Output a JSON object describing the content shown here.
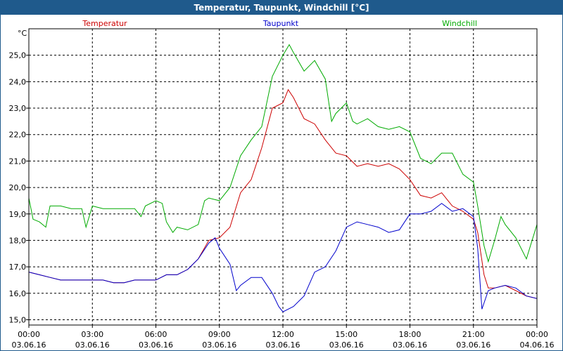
{
  "window": {
    "title": "Temperatur, Taupunkt, Windchill [°C]"
  },
  "chart_data": {
    "type": "line",
    "title": "Temperatur, Taupunkt, Windchill [°C]",
    "ylabel": "°C",
    "xlabel": "",
    "ylim": [
      14.8,
      26.0
    ],
    "xlim": [
      0,
      24
    ],
    "grid": true,
    "legend_position": "top",
    "y_ticks": [
      15.0,
      16.0,
      17.0,
      18.0,
      19.0,
      20.0,
      21.0,
      22.0,
      23.0,
      24.0,
      25.0
    ],
    "y_tick_labels": [
      "15,0",
      "16,0",
      "17,0",
      "18,0",
      "19,0",
      "20,0",
      "21,0",
      "22,0",
      "23,0",
      "24,0",
      "25,0"
    ],
    "x_ticks": [
      0,
      3,
      6,
      9,
      12,
      15,
      18,
      21,
      24
    ],
    "x_tick_labels": [
      {
        "time": "00:00",
        "date": "03.06.16"
      },
      {
        "time": "03:00",
        "date": "03.06.16"
      },
      {
        "time": "06:00",
        "date": "03.06.16"
      },
      {
        "time": "09:00",
        "date": "03.06.16"
      },
      {
        "time": "12:00",
        "date": "03.06.16"
      },
      {
        "time": "15:00",
        "date": "03.06.16"
      },
      {
        "time": "18:00",
        "date": "03.06.16"
      },
      {
        "time": "21:00",
        "date": "03.06.16"
      },
      {
        "time": "00:00",
        "date": "04.06.16"
      }
    ],
    "series": [
      {
        "name": "Temperatur",
        "color": "#cc0000",
        "points": [
          [
            0,
            16.8
          ],
          [
            0.5,
            16.7
          ],
          [
            1,
            16.6
          ],
          [
            1.5,
            16.5
          ],
          [
            2,
            16.5
          ],
          [
            2.5,
            16.5
          ],
          [
            3,
            16.5
          ],
          [
            3.5,
            16.5
          ],
          [
            4,
            16.4
          ],
          [
            4.5,
            16.4
          ],
          [
            5,
            16.5
          ],
          [
            5.5,
            16.5
          ],
          [
            6,
            16.5
          ],
          [
            6.5,
            16.7
          ],
          [
            7,
            16.7
          ],
          [
            7.5,
            16.9
          ],
          [
            8,
            17.3
          ],
          [
            8.5,
            18.0
          ],
          [
            9,
            18.1
          ],
          [
            9.5,
            18.5
          ],
          [
            10,
            19.8
          ],
          [
            10.5,
            20.3
          ],
          [
            11,
            21.5
          ],
          [
            11.5,
            23.0
          ],
          [
            12,
            23.2
          ],
          [
            12.25,
            23.7
          ],
          [
            12.5,
            23.4
          ],
          [
            13,
            22.6
          ],
          [
            13.5,
            22.4
          ],
          [
            14,
            21.8
          ],
          [
            14.5,
            21.3
          ],
          [
            15,
            21.2
          ],
          [
            15.5,
            20.8
          ],
          [
            16,
            20.9
          ],
          [
            16.5,
            20.8
          ],
          [
            17,
            20.9
          ],
          [
            17.5,
            20.7
          ],
          [
            18,
            20.3
          ],
          [
            18.5,
            19.7
          ],
          [
            19,
            19.6
          ],
          [
            19.5,
            19.8
          ],
          [
            20,
            19.3
          ],
          [
            20.5,
            19.1
          ],
          [
            21,
            18.8
          ],
          [
            21.2,
            18.3
          ],
          [
            21.5,
            16.7
          ],
          [
            21.7,
            16.2
          ],
          [
            22,
            16.2
          ],
          [
            22.5,
            16.3
          ],
          [
            23,
            16.1
          ],
          [
            23.5,
            15.9
          ],
          [
            24,
            15.8
          ]
        ]
      },
      {
        "name": "Taupunkt",
        "color": "#0000cc",
        "points": [
          [
            0,
            16.8
          ],
          [
            0.5,
            16.7
          ],
          [
            1,
            16.6
          ],
          [
            1.5,
            16.5
          ],
          [
            2,
            16.5
          ],
          [
            2.5,
            16.5
          ],
          [
            3,
            16.5
          ],
          [
            3.5,
            16.5
          ],
          [
            4,
            16.4
          ],
          [
            4.5,
            16.4
          ],
          [
            5,
            16.5
          ],
          [
            5.5,
            16.5
          ],
          [
            6,
            16.5
          ],
          [
            6.5,
            16.7
          ],
          [
            7,
            16.7
          ],
          [
            7.5,
            16.9
          ],
          [
            8,
            17.3
          ],
          [
            8.5,
            17.9
          ],
          [
            8.8,
            18.1
          ],
          [
            9,
            17.7
          ],
          [
            9.5,
            17.1
          ],
          [
            9.8,
            16.1
          ],
          [
            10,
            16.3
          ],
          [
            10.5,
            16.6
          ],
          [
            11,
            16.6
          ],
          [
            11.5,
            16.0
          ],
          [
            11.8,
            15.5
          ],
          [
            12,
            15.3
          ],
          [
            12.5,
            15.5
          ],
          [
            13,
            15.9
          ],
          [
            13.5,
            16.8
          ],
          [
            14,
            17.0
          ],
          [
            14.5,
            17.6
          ],
          [
            15,
            18.5
          ],
          [
            15.5,
            18.7
          ],
          [
            16,
            18.6
          ],
          [
            16.5,
            18.5
          ],
          [
            17,
            18.3
          ],
          [
            17.5,
            18.4
          ],
          [
            18,
            19.0
          ],
          [
            18.5,
            19.0
          ],
          [
            19,
            19.1
          ],
          [
            19.5,
            19.4
          ],
          [
            20,
            19.1
          ],
          [
            20.5,
            19.2
          ],
          [
            21,
            18.9
          ],
          [
            21.2,
            17.7
          ],
          [
            21.4,
            15.4
          ],
          [
            21.7,
            16.1
          ],
          [
            22,
            16.2
          ],
          [
            22.5,
            16.3
          ],
          [
            23,
            16.2
          ],
          [
            23.5,
            15.9
          ],
          [
            24,
            15.8
          ]
        ]
      },
      {
        "name": "Windchill",
        "color": "#00aa00",
        "points": [
          [
            0,
            19.6
          ],
          [
            0.2,
            18.8
          ],
          [
            0.5,
            18.7
          ],
          [
            0.8,
            18.5
          ],
          [
            1,
            19.3
          ],
          [
            1.5,
            19.3
          ],
          [
            2,
            19.2
          ],
          [
            2.5,
            19.2
          ],
          [
            2.7,
            18.5
          ],
          [
            3,
            19.3
          ],
          [
            3.5,
            19.2
          ],
          [
            4,
            19.2
          ],
          [
            4.5,
            19.2
          ],
          [
            5,
            19.2
          ],
          [
            5.3,
            18.9
          ],
          [
            5.5,
            19.3
          ],
          [
            6,
            19.5
          ],
          [
            6.3,
            19.4
          ],
          [
            6.5,
            18.7
          ],
          [
            6.8,
            18.3
          ],
          [
            7,
            18.5
          ],
          [
            7.5,
            18.4
          ],
          [
            8,
            18.6
          ],
          [
            8.3,
            19.5
          ],
          [
            8.5,
            19.6
          ],
          [
            9,
            19.5
          ],
          [
            9.5,
            20.0
          ],
          [
            10,
            21.2
          ],
          [
            10.5,
            21.8
          ],
          [
            11,
            22.3
          ],
          [
            11.5,
            24.2
          ],
          [
            12,
            25.0
          ],
          [
            12.3,
            25.4
          ],
          [
            12.5,
            25.1
          ],
          [
            13,
            24.4
          ],
          [
            13.5,
            24.8
          ],
          [
            14,
            24.1
          ],
          [
            14.3,
            22.5
          ],
          [
            14.5,
            22.8
          ],
          [
            15,
            23.2
          ],
          [
            15.3,
            22.5
          ],
          [
            15.5,
            22.4
          ],
          [
            16,
            22.6
          ],
          [
            16.5,
            22.3
          ],
          [
            17,
            22.2
          ],
          [
            17.5,
            22.3
          ],
          [
            18,
            22.1
          ],
          [
            18.5,
            21.1
          ],
          [
            19,
            20.9
          ],
          [
            19.5,
            21.3
          ],
          [
            20,
            21.3
          ],
          [
            20.5,
            20.5
          ],
          [
            21,
            20.2
          ],
          [
            21.2,
            19.3
          ],
          [
            21.5,
            17.8
          ],
          [
            21.7,
            17.2
          ],
          [
            22,
            18.0
          ],
          [
            22.3,
            18.9
          ],
          [
            22.5,
            18.6
          ],
          [
            23,
            18.1
          ],
          [
            23.5,
            17.3
          ],
          [
            24,
            18.6
          ]
        ]
      }
    ]
  }
}
